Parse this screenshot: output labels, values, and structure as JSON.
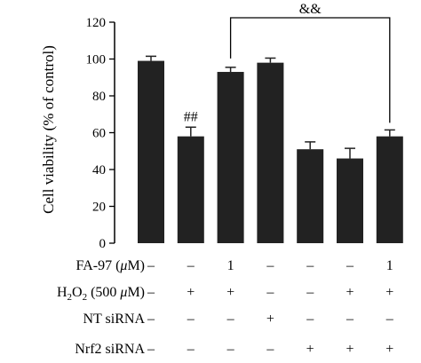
{
  "chart_data": {
    "type": "bar",
    "title": "",
    "xlabel": "",
    "ylabel": "Cell viability (% of control)",
    "ylim": [
      0,
      120
    ],
    "yticks": [
      "0",
      "20",
      "40",
      "60",
      "80",
      "100",
      "120"
    ],
    "bar_color": "#222222",
    "bars": [
      {
        "value": 99,
        "error": 2.5,
        "annotation": ""
      },
      {
        "value": 58,
        "error": 5,
        "annotation": "##"
      },
      {
        "value": 93,
        "error": 2.5,
        "annotation": ""
      },
      {
        "value": 98,
        "error": 2.5,
        "annotation": ""
      },
      {
        "value": 51,
        "error": 4,
        "annotation": ""
      },
      {
        "value": 46,
        "error": 5.5,
        "annotation": ""
      },
      {
        "value": 58,
        "error": 3.5,
        "annotation": ""
      }
    ],
    "comparison": {
      "from_bar": 2,
      "to_bar": 6,
      "label": "&&"
    },
    "condition_rows": [
      {
        "label_parts": [
          "FA-97 (",
          "μ",
          "M)"
        ],
        "cells": [
          "–",
          "–",
          "1",
          "–",
          "–",
          "–",
          "1"
        ]
      },
      {
        "label_parts": [
          "H",
          "2",
          "O",
          "2",
          " (500 ",
          "μ",
          "M)"
        ],
        "cells": [
          "–",
          "+",
          "+",
          "–",
          "–",
          "+",
          "+"
        ]
      },
      {
        "label_parts": [
          "NT siRNA"
        ],
        "cells": [
          "–",
          "–",
          "–",
          "+",
          "–",
          "–",
          "–"
        ]
      },
      {
        "label_parts": [
          "Nrf2 siRNA"
        ],
        "cells": [
          "–",
          "–",
          "–",
          "–",
          "+",
          "+",
          "+"
        ]
      }
    ]
  }
}
